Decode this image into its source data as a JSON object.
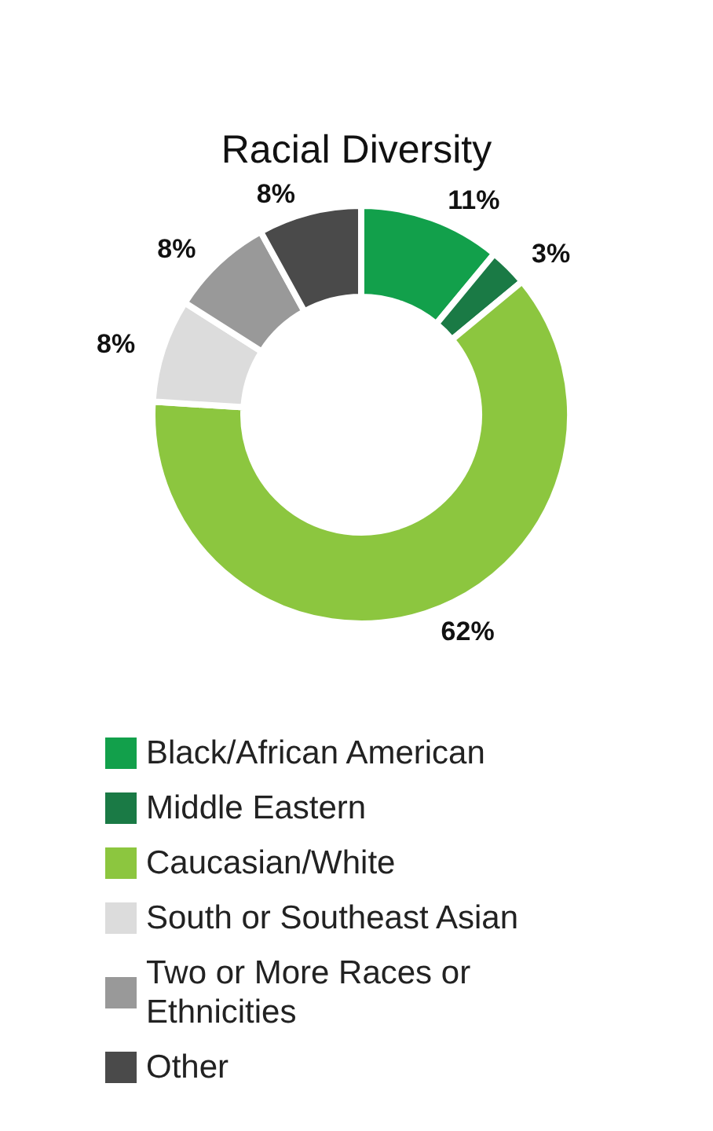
{
  "chart_data": {
    "type": "donut",
    "title": "Racial Diversity",
    "categories": [
      "Black/African American",
      "Middle Eastern",
      "Caucasian/White",
      "South or Southeast Asian",
      "Two or More Races or Ethnicities",
      "Other"
    ],
    "values": [
      11,
      3,
      62,
      8,
      8,
      8
    ],
    "colors": [
      "#12a04b",
      "#1a7a45",
      "#8cc63f",
      "#dcdcdc",
      "#999999",
      "#4a4a4a"
    ],
    "value_labels": [
      "11%",
      "3%",
      "62%",
      "8%",
      "8%",
      "8%"
    ],
    "legend": "bottom"
  }
}
